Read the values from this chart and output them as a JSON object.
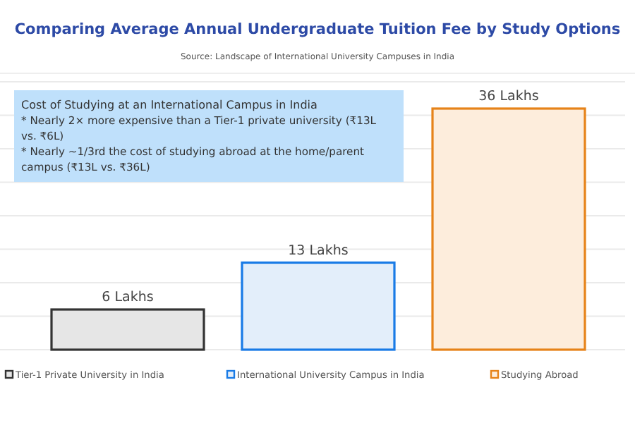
{
  "chart_data": {
    "type": "bar",
    "title": "Comparing Average Annual Undergraduate Tuition Fee by Study Options",
    "subtitle": "Source: Landscape of International University Campuses in India",
    "annotations": [
      "Cost of Studying at an International Campus in India",
      "* Nearly 2× more expensive than a Tier-1 private university (₹13L vs. ₹6L)",
      "* Nearly ~1/3rd the cost of studying abroad at the home/parent campus (₹13L vs. ₹36L)"
    ],
    "categories": [
      null
    ],
    "series": [
      {
        "name": "Tier-1 Private University in India",
        "color": "#e6e6e6",
        "values": [
          6
        ],
        "value_labels": [
          "6 Lakhs"
        ]
      },
      {
        "name": "International University Campus in India",
        "color": "#e3eefa",
        "values": [
          13
        ],
        "value_labels": [
          "13 Lakhs"
        ]
      },
      {
        "name": "Studying Abroad",
        "color": "#fdeddc",
        "values": [
          36
        ],
        "value_labels": [
          "36 Lakhs"
        ]
      }
    ],
    "ylim": [
      0,
      40
    ],
    "yticks": [
      {
        "value": 0,
        "label": null
      },
      {
        "value": 5,
        "label": null
      },
      {
        "value": 10,
        "label": null
      },
      {
        "value": 15,
        "label": null
      },
      {
        "value": 20,
        "label": null
      },
      {
        "value": 25,
        "label": null
      },
      {
        "value": 30,
        "label": null
      },
      {
        "value": 35,
        "label": null
      },
      {
        "value": 40,
        "label": null
      }
    ],
    "grid": "y",
    "legend": "bottom"
  }
}
